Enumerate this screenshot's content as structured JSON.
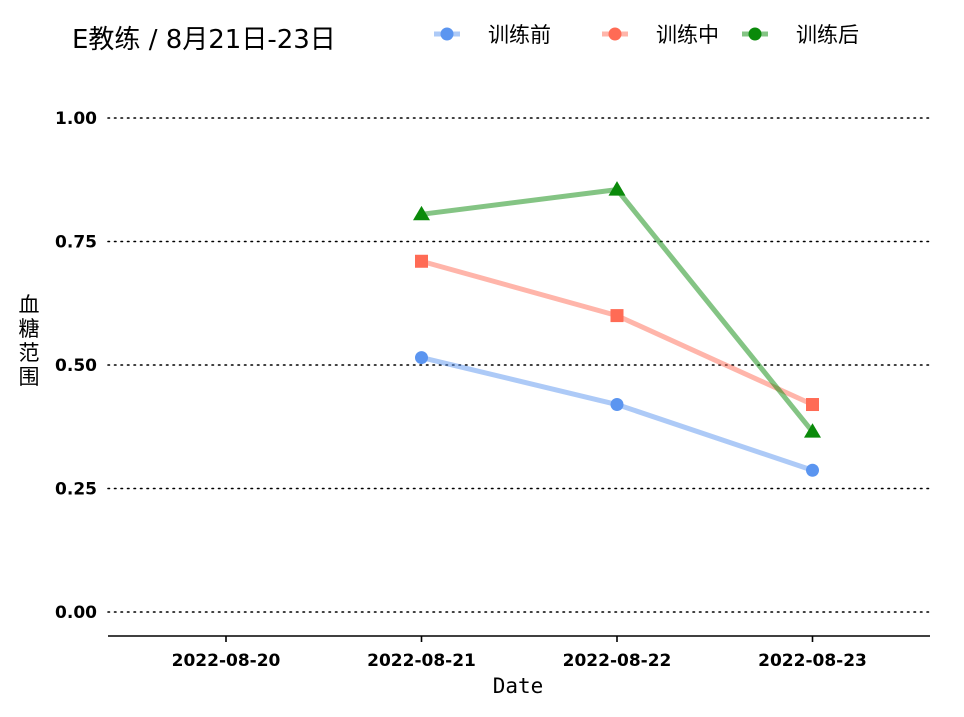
{
  "chart_data": {
    "type": "line",
    "title": "E教练 / 8月21日-23日",
    "xlabel": "Date",
    "ylabel": "血糖范围",
    "categories": [
      "2022-08-20",
      "2022-08-21",
      "2022-08-22",
      "2022-08-23"
    ],
    "ylim": [
      0,
      1
    ],
    "yticks": [
      "0.00",
      "0.25",
      "0.50",
      "0.75",
      "1.00"
    ],
    "grid": "horizontal-dotted",
    "legend_position": "top",
    "series": [
      {
        "name": "训练前",
        "color": "#5b95f0",
        "marker": "circle",
        "points": [
          [
            "2022-08-21",
            0.515
          ],
          [
            "2022-08-22",
            0.42
          ],
          [
            "2022-08-23",
            0.287
          ]
        ]
      },
      {
        "name": "训练中",
        "color": "#ff6b55",
        "marker": "square",
        "points": [
          [
            "2022-08-21",
            0.71
          ],
          [
            "2022-08-22",
            0.6
          ],
          [
            "2022-08-23",
            0.42
          ]
        ]
      },
      {
        "name": "训练后",
        "color": "#0a8a0a",
        "marker": "triangle",
        "points": [
          [
            "2022-08-21",
            0.805
          ],
          [
            "2022-08-22",
            0.855
          ],
          [
            "2022-08-23",
            0.365
          ]
        ]
      }
    ]
  }
}
